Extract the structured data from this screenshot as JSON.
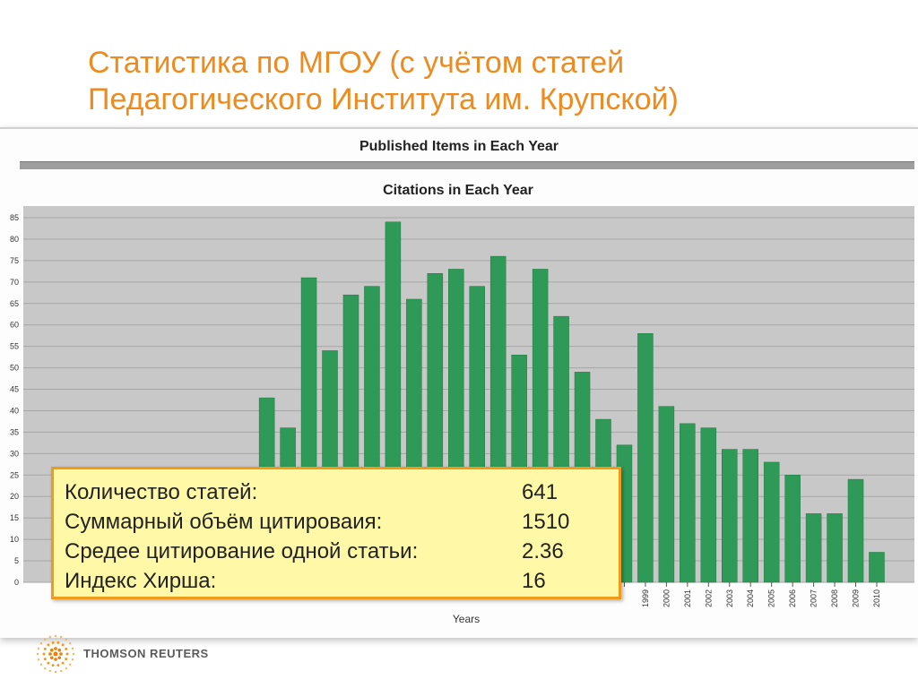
{
  "slide": {
    "title_line1": "Статистика по МГОУ (с учётом статей",
    "title_line2": "Педагогического Института им. Крупской)"
  },
  "back_chart": {
    "title": "Published Items in Each Year"
  },
  "chart_data": {
    "type": "bar",
    "title": "Citations in Each Year",
    "xlabel": "Years",
    "ylabel": "",
    "ylim": [
      0,
      85
    ],
    "yticks": [
      0,
      5,
      10,
      15,
      20,
      25,
      30,
      35,
      40,
      45,
      50,
      55,
      60,
      65,
      70,
      75,
      80,
      85
    ],
    "grid": true,
    "colors": {
      "bar": "#2f9a57",
      "bar_edge": "#1f7a42",
      "plot_bg": "#c8c8c8",
      "grid": "#a6a6a6"
    },
    "categories": [
      null,
      null,
      null,
      null,
      null,
      null,
      null,
      null,
      null,
      null,
      null,
      null,
      null,
      null,
      null,
      null,
      null,
      null,
      null,
      null,
      null,
      null,
      null,
      null,
      null,
      null,
      null,
      "1999",
      "2000",
      "2001",
      "2002",
      "2003",
      "2004",
      "2005",
      "2006",
      "2007",
      "2008",
      "2009",
      "2010"
    ],
    "values": [
      null,
      null,
      null,
      null,
      null,
      null,
      null,
      null,
      null,
      43,
      36,
      71,
      54,
      67,
      69,
      84,
      66,
      72,
      73,
      69,
      76,
      53,
      73,
      62,
      49,
      38,
      32,
      58,
      41,
      37,
      36,
      31,
      31,
      28,
      25,
      16,
      16,
      24,
      7
    ]
  },
  "stats": [
    {
      "label": "Количество статей:",
      "value": "641"
    },
    {
      "label": "Суммарный объём цитироваия:",
      "value": "1510"
    },
    {
      "label": "Средее цитирование одной статьи:",
      "value": "2.36"
    },
    {
      "label": "Индекс Хирша:",
      "value": "16"
    }
  ],
  "footer": {
    "brand": "THOMSON REUTERS"
  }
}
